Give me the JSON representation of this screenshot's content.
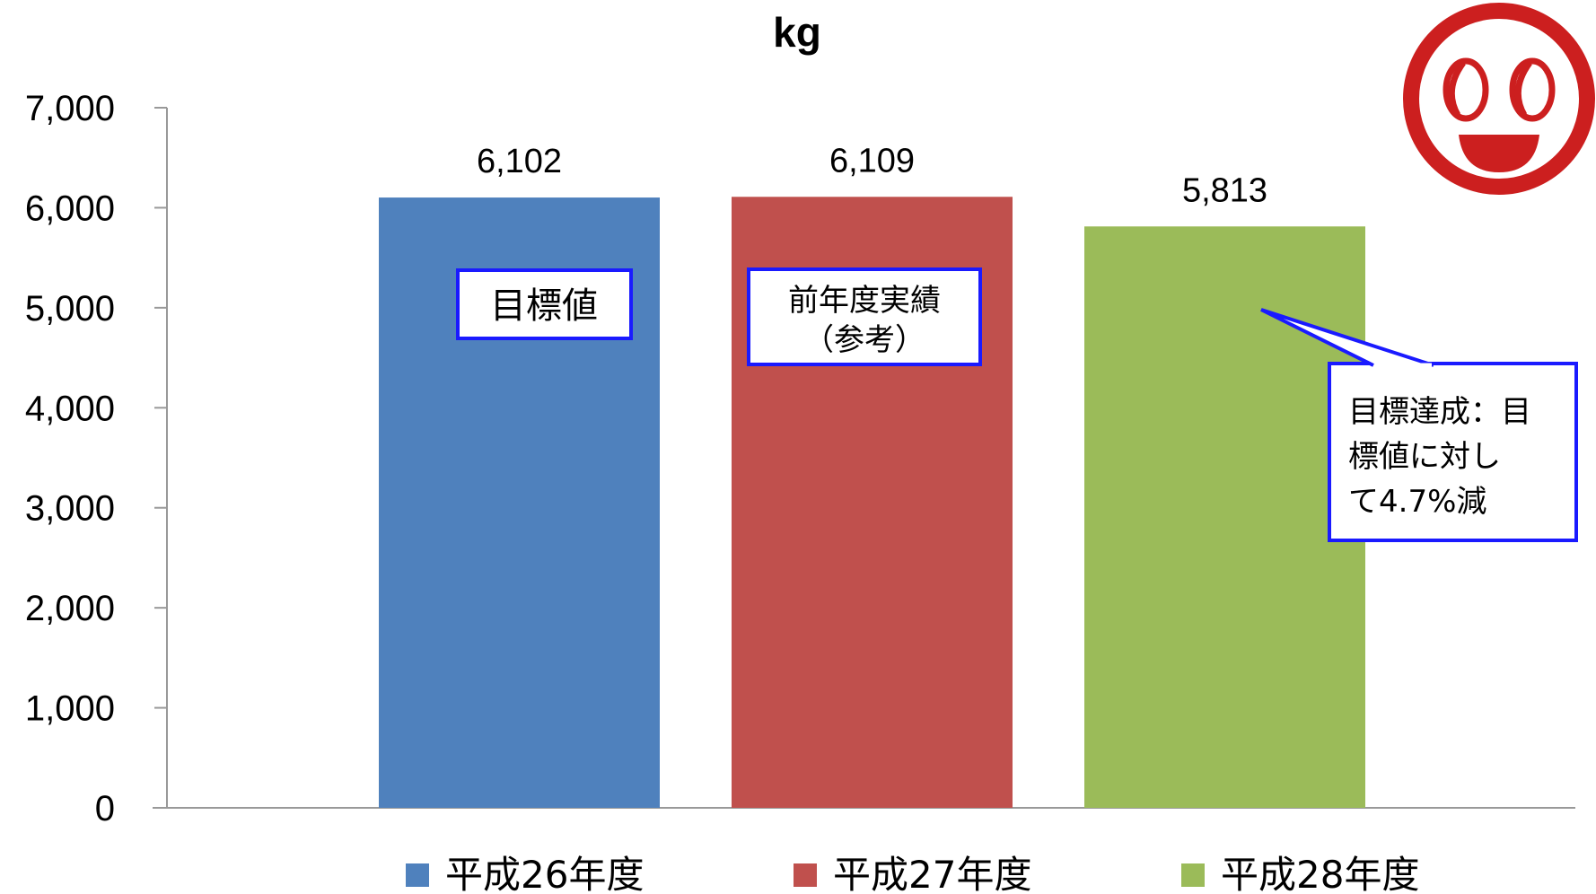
{
  "chart_data": {
    "type": "bar",
    "title": "kg",
    "categories": [
      "平成26年度",
      "平成27年度",
      "平成28年度"
    ],
    "values": [
      6102,
      6109,
      5813
    ],
    "value_labels": [
      "6,102",
      "6,109",
      "5,813"
    ],
    "colors": [
      "#4f81bd",
      "#c0504d",
      "#9bbb59"
    ],
    "ylim": [
      0,
      7000
    ],
    "yticks": [
      0,
      1000,
      2000,
      3000,
      4000,
      5000,
      6000,
      7000
    ],
    "ytick_labels": [
      "0",
      "1,000",
      "2,000",
      "3,000",
      "4,000",
      "5,000",
      "6,000",
      "7,000"
    ],
    "grid": false,
    "legend_position": "bottom",
    "annotations": {
      "target": "目標値",
      "reference_line1": "前年度実績",
      "reference_line2": "（参考）",
      "achieved_line1": "目標達成：目",
      "achieved_line2": "標値に対し",
      "achieved_line3": "て4.7%減"
    }
  },
  "logo": {
    "name": "smiling-face-logo",
    "color": "#cc1f1f"
  }
}
